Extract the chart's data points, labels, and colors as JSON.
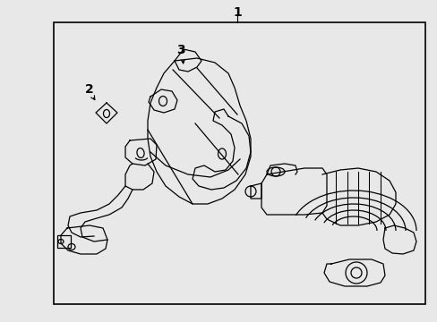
{
  "bg_color": "#e8e8e8",
  "border_face": "#e8e8e8",
  "line_color": "#000000",
  "label_1": "1",
  "label_2": "2",
  "label_3": "3",
  "fig_width": 4.89,
  "fig_height": 3.6,
  "dpi": 100,
  "border": [
    60,
    25,
    415,
    315
  ],
  "lw": 0.9
}
